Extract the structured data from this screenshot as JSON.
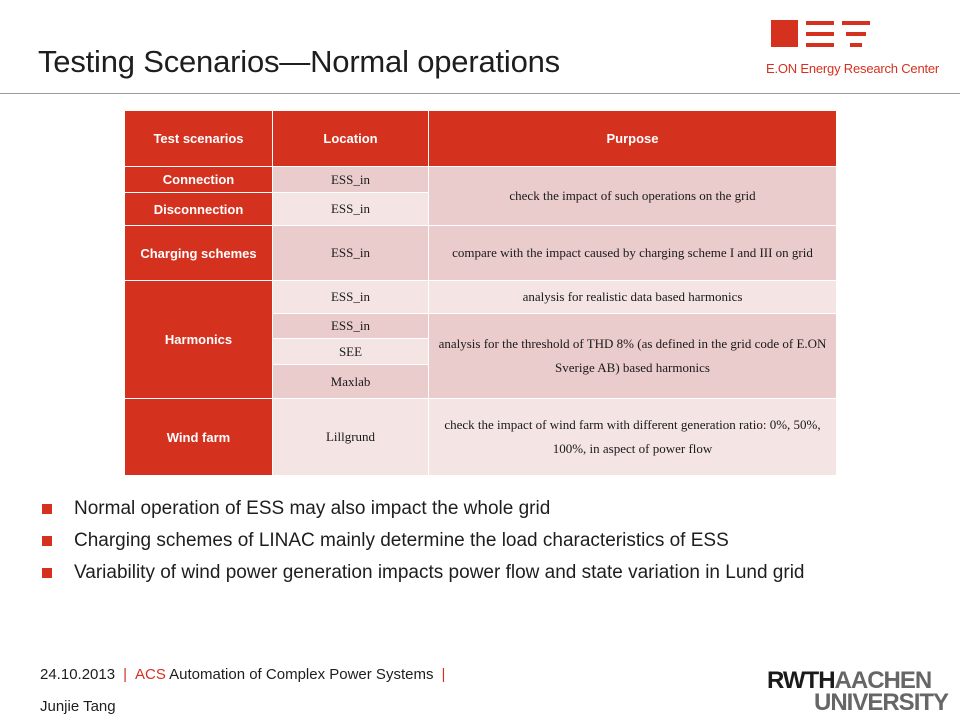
{
  "header": {
    "title": "Testing Scenarios—Normal operations",
    "logo_text": "E.ON Energy Research Center",
    "accent_color": "#d5311f"
  },
  "table": {
    "columns": [
      "Test scenarios",
      "Location",
      "Purpose"
    ],
    "rows": {
      "connection": {
        "scenario": "Connection",
        "location": "ESS_in"
      },
      "disconnection": {
        "scenario": "Disconnection",
        "location": "ESS_in"
      },
      "connect_purpose": "check the impact of such operations on the grid",
      "charging": {
        "scenario": "Charging schemes",
        "location": "ESS_in",
        "purpose": "compare with the impact caused by charging scheme I and III on grid"
      },
      "harmonics": {
        "scenario": "Harmonics",
        "locations": [
          "ESS_in",
          "ESS_in",
          "SEE",
          "Maxlab"
        ],
        "purpose_1": "analysis for realistic data based harmonics",
        "purpose_2": "analysis for the threshold of THD 8% (as defined in the grid code of E.ON Sverige AB) based harmonics"
      },
      "wind": {
        "scenario": "Wind farm",
        "location": "Lillgrund",
        "purpose": "check the impact of wind farm with different generation ratio: 0%, 50%, 100%, in aspect of power flow"
      }
    }
  },
  "bullets": [
    "Normal operation of ESS may also impact the whole grid",
    "Charging schemes of LINAC mainly determine the load characteristics of ESS",
    "Variability of wind power generation impacts power flow and state variation in Lund grid"
  ],
  "footer": {
    "date": "24.10.2013",
    "sep": "|",
    "acs": "ACS",
    "dept": "Automation of Complex Power Systems",
    "author": "Junjie Tang"
  },
  "rwth_logo": {
    "line1_a": "RWTH",
    "line1_b": "AACHEN",
    "line2": "UNIVERSITY"
  }
}
